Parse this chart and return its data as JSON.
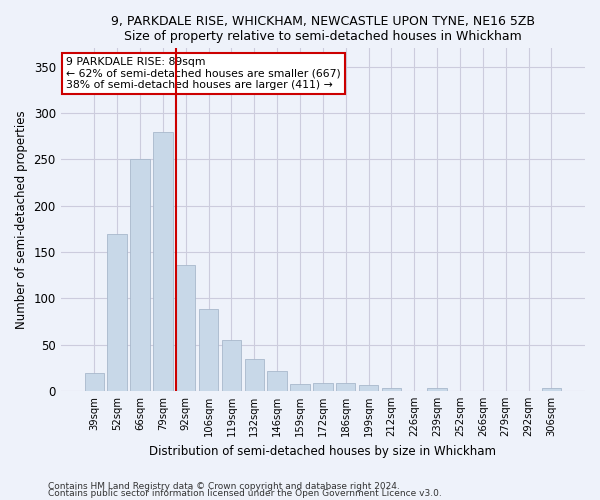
{
  "title1": "9, PARKDALE RISE, WHICKHAM, NEWCASTLE UPON TYNE, NE16 5ZB",
  "title2": "Size of property relative to semi-detached houses in Whickham",
  "xlabel": "Distribution of semi-detached houses by size in Whickham",
  "ylabel": "Number of semi-detached properties",
  "categories": [
    "39sqm",
    "52sqm",
    "66sqm",
    "79sqm",
    "92sqm",
    "106sqm",
    "119sqm",
    "132sqm",
    "146sqm",
    "159sqm",
    "172sqm",
    "186sqm",
    "199sqm",
    "212sqm",
    "226sqm",
    "239sqm",
    "252sqm",
    "266sqm",
    "279sqm",
    "292sqm",
    "306sqm"
  ],
  "values": [
    19,
    170,
    250,
    280,
    136,
    88,
    55,
    35,
    21,
    8,
    9,
    9,
    6,
    3,
    0,
    3,
    0,
    0,
    0,
    0,
    3
  ],
  "bar_color": "#c8d8e8",
  "bar_edge_color": "#a8b8cc",
  "vline_color": "#cc0000",
  "vline_bar_index": 4,
  "annotation_text": "9 PARKDALE RISE: 89sqm\n← 62% of semi-detached houses are smaller (667)\n38% of semi-detached houses are larger (411) →",
  "annotation_box_color": "#ffffff",
  "annotation_box_edge": "#cc0000",
  "ylim": [
    0,
    370
  ],
  "yticks": [
    0,
    50,
    100,
    150,
    200,
    250,
    300,
    350
  ],
  "grid_color": "#ccccdd",
  "background_color": "#eef2fa",
  "footnote1": "Contains HM Land Registry data © Crown copyright and database right 2024.",
  "footnote2": "Contains public sector information licensed under the Open Government Licence v3.0."
}
